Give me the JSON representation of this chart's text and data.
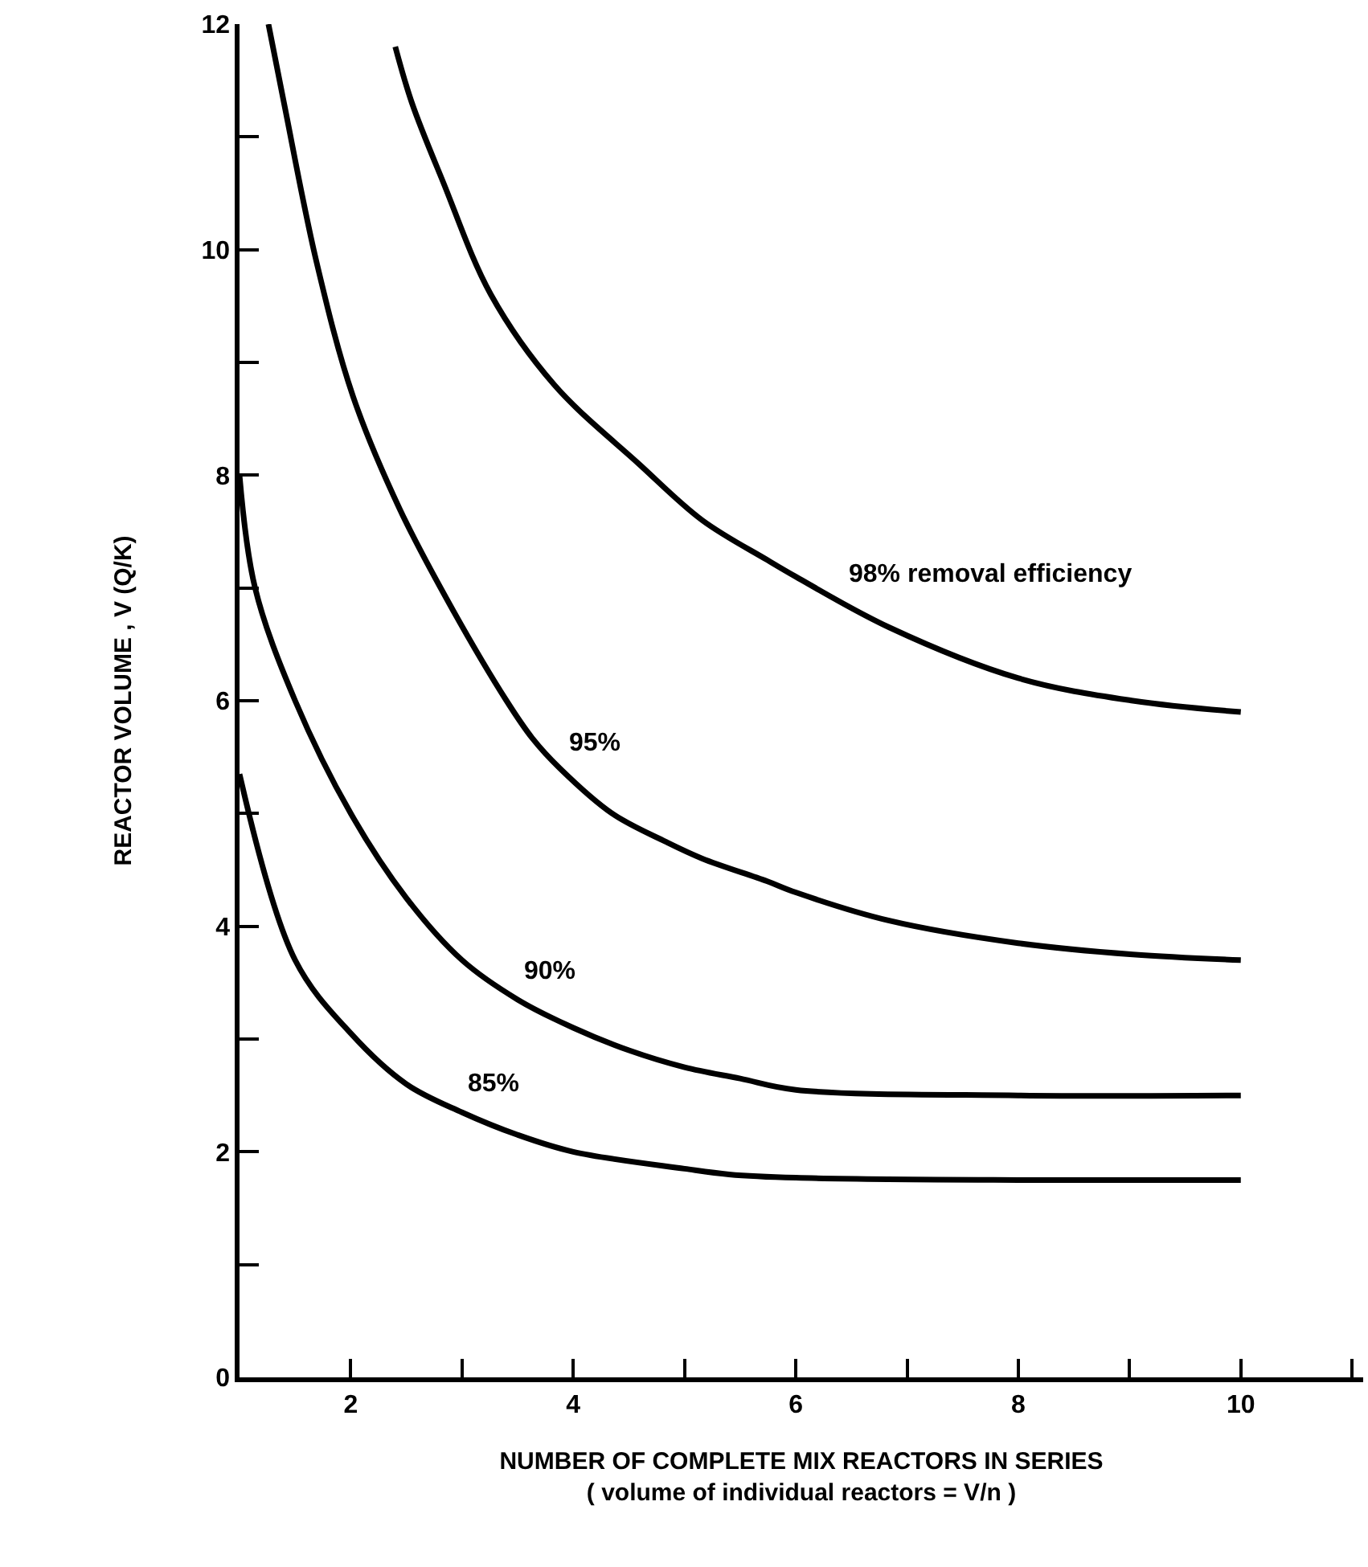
{
  "chart_data": {
    "type": "line",
    "xlabel": "NUMBER OF COMPLETE MIX REACTORS IN SERIES\n( volume of individual reactors = V/n )",
    "ylabel": "REACTOR VOLUME , V (Q/K)",
    "xlim": [
      1,
      11.1
    ],
    "ylim": [
      0,
      12
    ],
    "xticks": [
      2,
      {
        "value": 3,
        "label": null
      },
      4,
      {
        "value": 5,
        "label": null
      },
      6,
      {
        "value": 7,
        "label": null
      },
      8,
      {
        "value": 9,
        "label": null
      },
      10,
      {
        "value": 11,
        "label": null
      }
    ],
    "yticks": [
      0,
      {
        "value": 1,
        "label": null
      },
      2,
      {
        "value": 3,
        "label": null
      },
      4,
      {
        "value": 5,
        "label": null
      },
      6,
      {
        "value": 7,
        "label": null
      },
      8,
      {
        "value": 9,
        "label": null
      },
      10,
      {
        "value": 11,
        "label": null
      },
      12
    ],
    "grid": false,
    "legend": false,
    "marker": "none",
    "line_style": "solid",
    "series": [
      {
        "name": "98% removal efficiency",
        "color": "#000000",
        "x": [
          2.4,
          2.55,
          2.83,
          3.26,
          3.83,
          4.59,
          5.16,
          5.74,
          6.0,
          6.84,
          8.0,
          9.03,
          10.0
        ],
        "values": [
          11.8,
          11.3,
          10.6,
          9.6,
          8.8,
          8.1,
          7.6,
          7.25,
          7.1,
          6.65,
          6.2,
          6.0,
          5.9
        ]
      },
      {
        "name": "95%",
        "color": "#000000",
        "x": [
          1.26,
          1.4,
          1.69,
          2.02,
          2.44,
          2.92,
          3.4,
          3.63,
          3.88,
          4.35,
          4.83,
          5.16,
          5.74,
          6.0,
          6.84,
          8.0,
          9.03,
          10.0
        ],
        "values": [
          12.0,
          11.3,
          9.9,
          8.7,
          7.7,
          6.8,
          6.0,
          5.67,
          5.4,
          5.0,
          4.75,
          4.6,
          4.4,
          4.3,
          4.05,
          3.85,
          3.75,
          3.7
        ]
      },
      {
        "name": "90%",
        "color": "#000000",
        "x": [
          1.0,
          1.14,
          1.5,
          2.0,
          2.5,
          3.0,
          3.5,
          4.0,
          4.5,
          5.0,
          5.5,
          6.0,
          8.0,
          10.0
        ],
        "values": [
          8.0,
          7.0,
          6.0,
          5.0,
          4.25,
          3.7,
          3.35,
          3.1,
          2.9,
          2.75,
          2.65,
          2.55,
          2.5,
          2.5
        ]
      },
      {
        "name": "85%",
        "color": "#000000",
        "x": [
          1.0,
          1.5,
          2.0,
          2.5,
          3.0,
          3.5,
          4.0,
          5.0,
          5.4,
          6.0,
          8.0,
          10.0
        ],
        "values": [
          5.35,
          3.7,
          3.05,
          2.6,
          2.35,
          2.15,
          2.0,
          1.85,
          1.8,
          1.77,
          1.75,
          1.75
        ]
      }
    ]
  }
}
